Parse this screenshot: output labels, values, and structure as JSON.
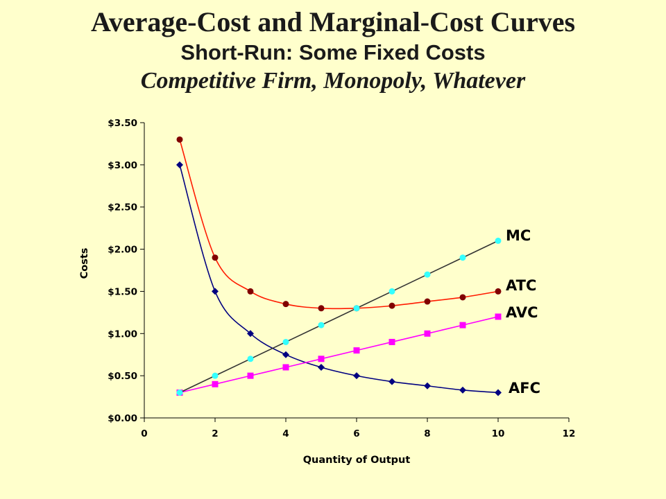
{
  "title": "Average-Cost and Marginal-Cost Curves",
  "subtitle": "Short-Run: Some Fixed Costs",
  "subtitle2": "Competitive Firm, Monopoly, Whatever",
  "chart_data": {
    "type": "line",
    "xlabel": "Quantity of Output",
    "ylabel": "Costs",
    "xlim": [
      0,
      12
    ],
    "ylim": [
      0,
      3.5
    ],
    "x_ticks": [
      "0",
      "2",
      "4",
      "6",
      "8",
      "10",
      "12"
    ],
    "y_ticks": [
      "$0.00",
      "$0.50",
      "$1.00",
      "$1.50",
      "$2.00",
      "$2.50",
      "$3.00",
      "$3.50"
    ],
    "grid": false,
    "legend": "labels at line ends",
    "series": [
      {
        "name": "MC",
        "color": "#333333",
        "marker_color": "#33ffff",
        "marker": "circle",
        "smooth": false,
        "x": [
          1,
          2,
          3,
          4,
          5,
          6,
          7,
          8,
          9,
          10
        ],
        "y": [
          0.3,
          0.5,
          0.7,
          0.9,
          1.1,
          1.3,
          1.5,
          1.7,
          1.9,
          2.1
        ]
      },
      {
        "name": "ATC",
        "color": "#ff1a00",
        "marker_color": "#800000",
        "marker": "circle",
        "smooth": true,
        "x": [
          1,
          2,
          3,
          4,
          5,
          6,
          7,
          8,
          9,
          10
        ],
        "y": [
          3.3,
          1.9,
          1.5,
          1.35,
          1.3,
          1.3,
          1.33,
          1.38,
          1.43,
          1.5
        ]
      },
      {
        "name": "AVC",
        "color": "#ff00ff",
        "marker_color": "#ff00ff",
        "marker": "square",
        "smooth": false,
        "x": [
          1,
          2,
          3,
          4,
          5,
          6,
          7,
          8,
          9,
          10
        ],
        "y": [
          0.3,
          0.4,
          0.5,
          0.6,
          0.7,
          0.8,
          0.9,
          1.0,
          1.1,
          1.2
        ]
      },
      {
        "name": "AFC",
        "color": "#000080",
        "marker_color": "#000080",
        "marker": "diamond",
        "smooth": true,
        "x": [
          1,
          2,
          3,
          4,
          5,
          6,
          7,
          8,
          9,
          10
        ],
        "y": [
          3.0,
          1.5,
          1.0,
          0.75,
          0.6,
          0.5,
          0.43,
          0.38,
          0.33,
          0.3
        ]
      }
    ]
  }
}
